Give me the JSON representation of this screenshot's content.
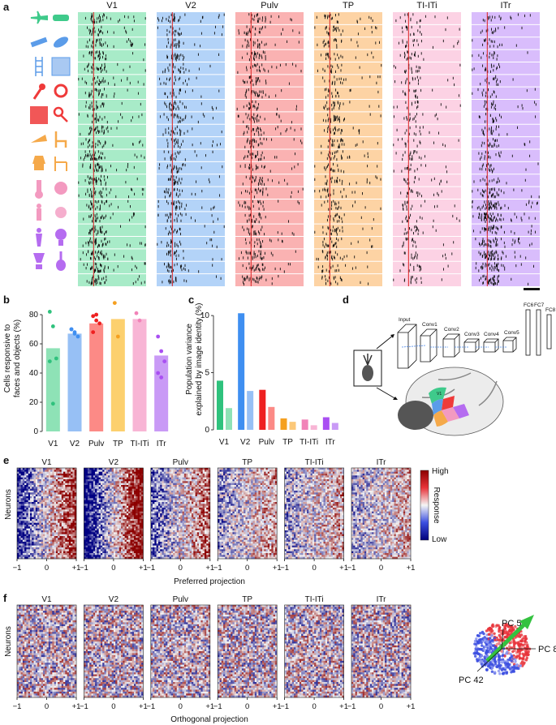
{
  "panels": {
    "a": {
      "label": "a",
      "regions": [
        "V1",
        "V2",
        "Pulv",
        "TP",
        "TI-ITi",
        "ITr"
      ],
      "colors": [
        "#a8ebc8",
        "#b3d3f8",
        "#fab2b2",
        "#fdd3a4",
        "#fcd2e4",
        "#d9bdfc"
      ],
      "objects": [
        {
          "name": "object-airplane",
          "color": "#3fca8b",
          "shape": "airplane"
        },
        {
          "name": "object-car",
          "color": "#3fca8b",
          "shape": "car"
        },
        {
          "name": "object-pipe",
          "color": "#5b9ce9",
          "shape": "pipe"
        },
        {
          "name": "object-fish",
          "color": "#5b9ce9",
          "shape": "fish"
        },
        {
          "name": "object-ladder",
          "color": "#5b9ce9",
          "shape": "ladder"
        },
        {
          "name": "object-texture",
          "color": "#5b9ce9",
          "shape": "texture"
        },
        {
          "name": "object-microphone",
          "color": "#ef3a3a",
          "shape": "mic"
        },
        {
          "name": "object-ring",
          "color": "#ef3a3a",
          "shape": "ring"
        },
        {
          "name": "object-square",
          "color": "#ef3a3a",
          "shape": "square"
        },
        {
          "name": "object-key",
          "color": "#ef3a3a",
          "shape": "key"
        },
        {
          "name": "object-horn",
          "color": "#f5a94a",
          "shape": "horn"
        },
        {
          "name": "object-chair",
          "color": "#f5a94a",
          "shape": "chair"
        },
        {
          "name": "object-lamp",
          "color": "#f5a94a",
          "shape": "lamp"
        },
        {
          "name": "object-seat",
          "color": "#f5a94a",
          "shape": "seat"
        },
        {
          "name": "object-hand",
          "color": "#f39ac0",
          "shape": "hand"
        },
        {
          "name": "object-ball",
          "color": "#f39ac0",
          "shape": "ball"
        },
        {
          "name": "object-figure",
          "color": "#f39ac0",
          "shape": "figure"
        },
        {
          "name": "object-orb",
          "color": "#f39ac0",
          "shape": "orb"
        },
        {
          "name": "object-statue",
          "color": "#b56cf0",
          "shape": "statue"
        },
        {
          "name": "object-bulb",
          "color": "#b56cf0",
          "shape": "bulb"
        },
        {
          "name": "object-trophy",
          "color": "#b56cf0",
          "shape": "trophy"
        },
        {
          "name": "object-guitar",
          "color": "#b56cf0",
          "shape": "guitar"
        }
      ]
    },
    "b": {
      "label": "b",
      "ylabel": "Cells responsive to faces and objects (%)",
      "ylabel_lines": [
        "Cells responsive to",
        "faces and objects (%)"
      ]
    },
    "c": {
      "label": "c",
      "ylabel": "Population variance explained by image identity (%)",
      "ylabel_lines": [
        "Population variance",
        "explained by image identity (%)"
      ]
    },
    "d": {
      "label": "d",
      "layers": [
        "Input",
        "Conv1",
        "Conv2",
        "Conv3",
        "Conv4",
        "Conv5",
        "FC6",
        "FC7",
        "FC8"
      ]
    },
    "e": {
      "label": "e",
      "ylabel": "Neurons",
      "xlabel": "Preferred projection",
      "ticks": [
        "−1",
        "0",
        "+1"
      ],
      "colorbar": {
        "high": "High",
        "low": "Low",
        "title": "Response"
      }
    },
    "f": {
      "label": "f",
      "ylabel": "Neurons",
      "xlabel": "Orthogonal projection",
      "ticks": [
        "−1",
        "0",
        "+1"
      ]
    },
    "pca": {
      "pc5": "PC 5",
      "pc8": "PC 8",
      "pc42": "PC 42"
    }
  },
  "chart_data": [
    {
      "type": "bar",
      "panel": "b",
      "categories": [
        "V1",
        "V2",
        "Pulv",
        "TP",
        "TI-ITi",
        "ITr"
      ],
      "values": [
        57,
        67,
        74,
        77,
        77,
        52
      ],
      "colors": [
        "#8ee2b6",
        "#97c0f5",
        "#fc8a86",
        "#fcd06e",
        "#f8b5d5",
        "#c99af6"
      ],
      "dot_colors": [
        "#2fc27d",
        "#3f8ff1",
        "#ee2020",
        "#f5a020",
        "#f183b8",
        "#a94ff2"
      ],
      "points": [
        [
          82,
          72,
          50,
          48,
          19
        ],
        [
          70,
          68,
          65,
          70,
          67
        ],
        [
          79,
          80,
          74,
          68,
          76
        ],
        [
          88,
          65
        ],
        [
          81,
          76
        ],
        [
          65,
          55,
          48,
          40,
          37
        ]
      ],
      "ylim": [
        0,
        90
      ],
      "yticks": [
        0,
        20,
        40,
        60,
        80
      ],
      "ylabel": "Cells responsive to faces and objects (%)"
    },
    {
      "type": "bar",
      "panel": "c",
      "categories": [
        "V1",
        "V2",
        "Pulv",
        "TP",
        "TI-ITi",
        "ITr"
      ],
      "series": [
        {
          "name": "primary",
          "values": [
            4.3,
            10.2,
            3.5,
            1.0,
            0.9,
            1.1
          ],
          "colors": [
            "#2fc27d",
            "#3f8ff1",
            "#ee2020",
            "#f5a020",
            "#f183b8",
            "#a94ff2"
          ]
        },
        {
          "name": "secondary",
          "values": [
            1.9,
            3.4,
            2.0,
            0.7,
            0.4,
            0.6
          ],
          "colors": [
            "#8ee2b6",
            "#97c0f5",
            "#fc8a86",
            "#fcc878",
            "#f8b5d5",
            "#c99af6"
          ]
        }
      ],
      "ylim": [
        0,
        11
      ],
      "yticks": [
        0,
        5,
        10
      ],
      "ylabel": "Population variance explained by image identity (%)"
    }
  ]
}
